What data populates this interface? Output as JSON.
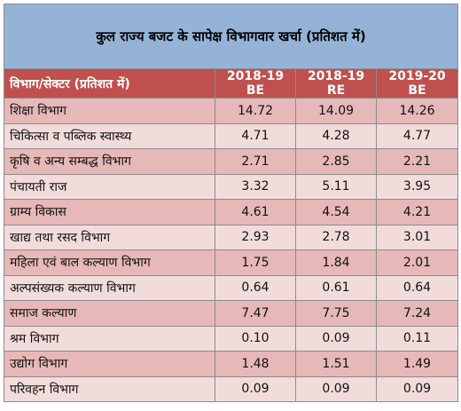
{
  "title": "कुल राज्य बजट के सापेक्ष विभागवार खर्चा (प्रतिशत में)",
  "headers": [
    "विभाग/सेक्टर (प्रतिशत में)",
    "2018-19 BE",
    "2018-19 RE",
    "2019-20 BE"
  ],
  "rows": [
    [
      "शिक्षा विभाग",
      "14.72",
      "14.09",
      "14.26"
    ],
    [
      "चिकित्सा व पब्लिक स्वास्थ्य",
      "4.71",
      "4.28",
      "4.77"
    ],
    [
      "कृषि व अन्य सम्बद्ध विभाग",
      "2.71",
      "2.85",
      "2.21"
    ],
    [
      "पंचायती राज",
      "3.32",
      "5.11",
      "3.95"
    ],
    [
      "ग्राम्य विकास",
      "4.61",
      "4.54",
      "4.21"
    ],
    [
      "खाद्य तथा रसद विभाग",
      "2.93",
      "2.78",
      "3.01"
    ],
    [
      "महिला एवं बाल कल्याण विभाग",
      "1.75",
      "1.84",
      "2.01"
    ],
    [
      "अल्पसंख्यक कल्याण विभाग",
      "0.64",
      "0.61",
      "0.64"
    ],
    [
      "समाज कल्याण",
      "7.47",
      "7.75",
      "7.24"
    ],
    [
      "श्रम विभाग",
      "0.10",
      "0.09",
      "0.11"
    ],
    [
      "उद्योग विभाग",
      "1.48",
      "1.51",
      "1.49"
    ],
    [
      "परिवहन विभाग",
      "0.09",
      "0.09",
      "0.09"
    ]
  ]
}
